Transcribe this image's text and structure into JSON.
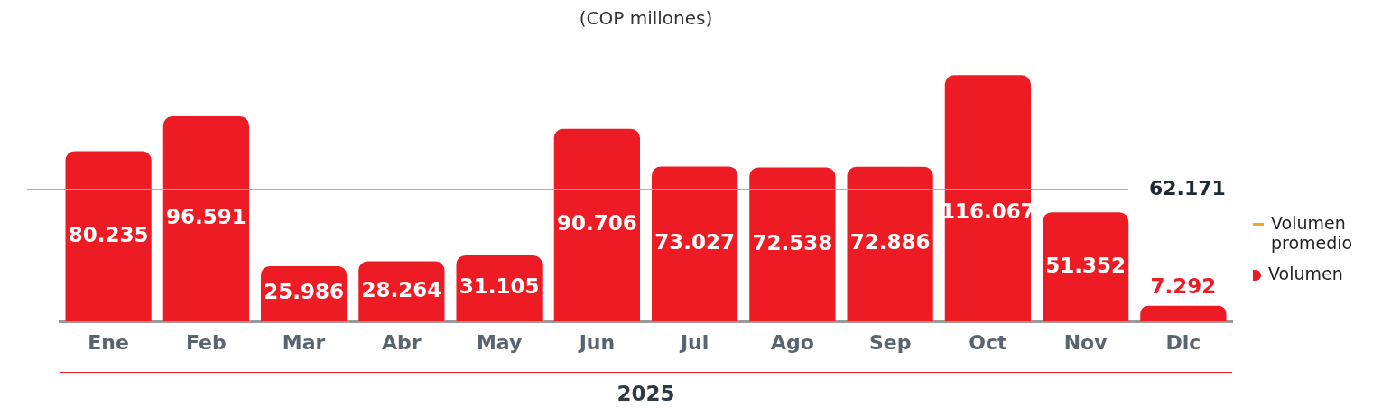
{
  "chart_data": {
    "type": "bar",
    "title": "(COP millones)",
    "xlabel": "2025",
    "categories": [
      "Ene",
      "Feb",
      "Mar",
      "Abr",
      "May",
      "Jun",
      "Jul",
      "Ago",
      "Sep",
      "Oct",
      "Nov",
      "Dic"
    ],
    "series": [
      {
        "name": "Volumen",
        "color": "#ed1c24",
        "values": [
          80235,
          96591,
          25986,
          28264,
          31105,
          90706,
          73027,
          72538,
          72886,
          116067,
          51352,
          7292
        ],
        "value_labels": [
          "80.235",
          "96.591",
          "25.986",
          "28.264",
          "31.105",
          "90.706",
          "73.027",
          "72.538",
          "72.886",
          "116.067",
          "51.352",
          "7.292"
        ]
      }
    ],
    "ref_lines": [
      {
        "axis": "y",
        "value": 62171,
        "label": "Volumen promedio",
        "color": "#f5a623"
      }
    ],
    "annotations": [
      "62.171"
    ],
    "legend": "right",
    "grid": false
  }
}
